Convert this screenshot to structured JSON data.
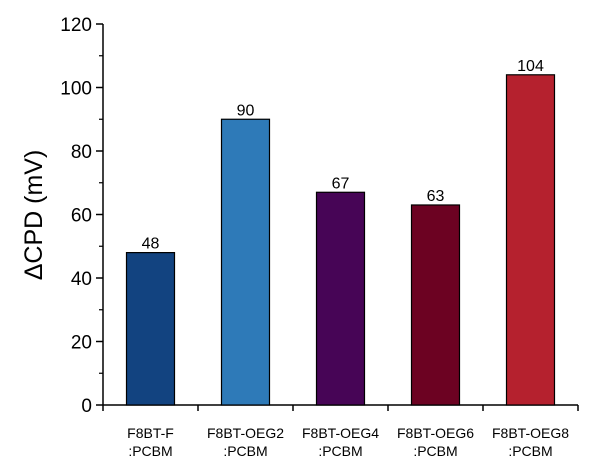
{
  "chart_data": {
    "type": "bar",
    "categories": [
      [
        "F8BT-F",
        ":PCBM"
      ],
      [
        "F8BT-OEG2",
        ":PCBM"
      ],
      [
        "F8BT-OEG4",
        ":PCBM"
      ],
      [
        "F8BT-OEG6",
        ":PCBM"
      ],
      [
        "F8BT-OEG8",
        ":PCBM"
      ]
    ],
    "values": [
      48,
      90,
      67,
      63,
      104
    ],
    "value_labels": [
      "48",
      "90",
      "67",
      "63",
      "104"
    ],
    "colors": [
      "#124380",
      "#2e7ab8",
      "#470556",
      "#6c0222",
      "#b5212e"
    ],
    "ylabel": "ΔCPD (mV)",
    "ylim": [
      0,
      120
    ],
    "yticks": [
      0,
      20,
      40,
      60,
      80,
      100,
      120
    ],
    "ytick_labels": [
      "0",
      "20",
      "40",
      "60",
      "80",
      "100",
      "120"
    ],
    "grid": false,
    "legend": "none"
  }
}
